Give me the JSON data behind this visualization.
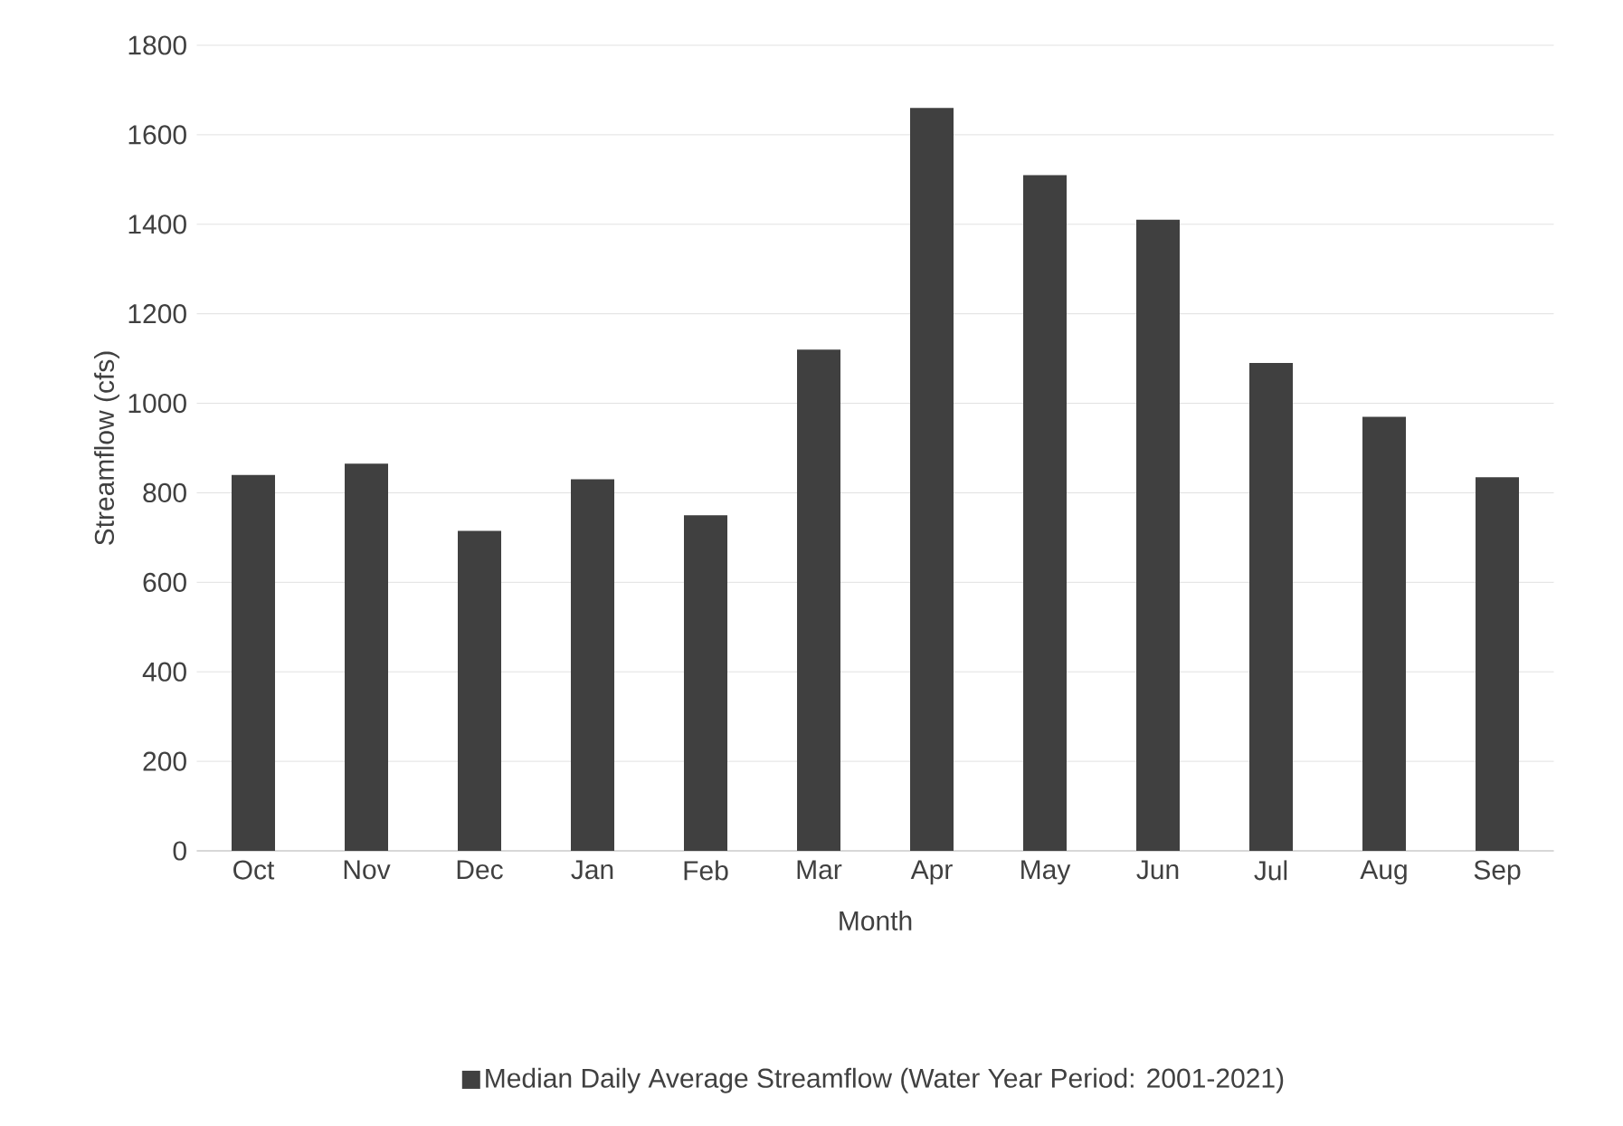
{
  "chart_data": {
    "type": "bar",
    "xlabel": "Month",
    "ylabel": "Streamflow (cfs)",
    "categories": [
      "Oct",
      "Nov",
      "Dec",
      "Jan",
      "Feb",
      "Mar",
      "Apr",
      "May",
      "Jun",
      "Jul",
      "Aug",
      "Sep"
    ],
    "series": [
      {
        "name": "Median Daily Average Streamflow (Water Year Period: 2001-2021)",
        "color": "#404040",
        "values": [
          840,
          865,
          715,
          830,
          750,
          1120,
          1660,
          1510,
          1410,
          1090,
          970,
          835
        ]
      }
    ],
    "ylim": [
      0,
      1800
    ],
    "yticks": [
      0,
      200,
      400,
      600,
      800,
      1000,
      1200,
      1400,
      1600,
      1800
    ],
    "grid": "y",
    "legend": "bottom"
  }
}
